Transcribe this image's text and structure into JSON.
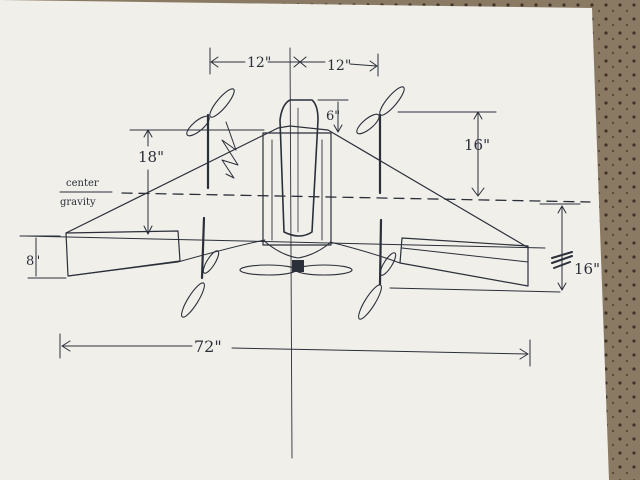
{
  "dimensions": {
    "left_half_span": "12\"",
    "right_half_span": "12\"",
    "fuselage_offset": "6\"",
    "aft_rotor_spacing": "16\"",
    "forward_to_cg": "18\"",
    "tip_chord": "8\"",
    "right_tip_chord": "16\"",
    "wingspan": "72\""
  },
  "labels": {
    "cg_line1": "center",
    "cg_line2": "gravity"
  },
  "colors": {
    "paper": "#f1efe9",
    "ink": "#2a2f3a",
    "carpet": "#8a7a64"
  }
}
